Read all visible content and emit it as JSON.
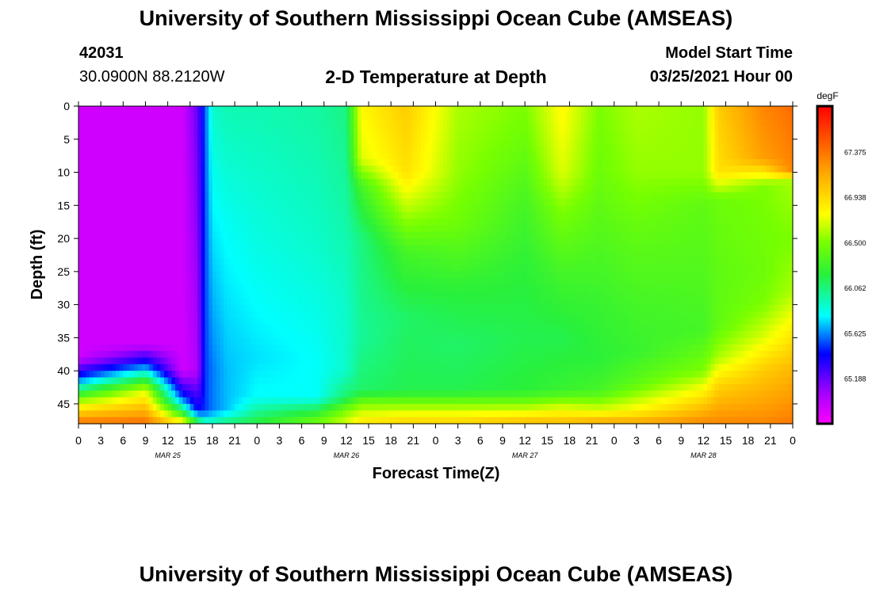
{
  "page": {
    "title": "University of Southern Mississippi Ocean Cube (AMSEAS)",
    "footer_title": "University of Southern Mississippi Ocean Cube (AMSEAS)",
    "station_id": "42031",
    "coordinates": "30.0900N  88.2120W",
    "plot_title": "2-D Temperature at Depth",
    "model_start_label": "Model Start Time",
    "model_start_value": "03/25/2021 Hour 00"
  },
  "chart_data": {
    "type": "heatmap",
    "title": "2-D Temperature at Depth",
    "xlabel": "Forecast Time(Z)",
    "ylabel": "Depth (ft)",
    "xlim_hours": [
      0,
      96
    ],
    "ylim_ft": [
      0,
      48
    ],
    "x_tick_labels": [
      "0",
      "3",
      "6",
      "9",
      "12",
      "15",
      "18",
      "21",
      "0",
      "3",
      "6",
      "9",
      "12",
      "15",
      "18",
      "21",
      "0",
      "3",
      "6",
      "9",
      "12",
      "15",
      "18",
      "21",
      "0",
      "3",
      "6",
      "9",
      "12",
      "15",
      "18",
      "21",
      "0"
    ],
    "day_labels": [
      "MAR 25",
      "MAR 26",
      "MAR 27",
      "MAR 28"
    ],
    "y_ticks": [
      0,
      5,
      10,
      15,
      20,
      25,
      30,
      35,
      40,
      45
    ],
    "colorbar": {
      "unit": "degF",
      "min": 64.75,
      "max": 67.8125,
      "labels": [
        "67.375",
        "66.938",
        "66.500",
        "66.062",
        "65.625",
        "65.188"
      ]
    },
    "temperature_keyframes": [
      {
        "hour": 0,
        "profile": [
          [
            0,
            64.9
          ],
          [
            38,
            64.9
          ],
          [
            41,
            65.5
          ],
          [
            43,
            66.1
          ],
          [
            45,
            66.7
          ],
          [
            48,
            67.4
          ]
        ]
      },
      {
        "hour": 9,
        "profile": [
          [
            0,
            64.9
          ],
          [
            36,
            64.9
          ],
          [
            39,
            65.5
          ],
          [
            41,
            66.1
          ],
          [
            43,
            66.7
          ],
          [
            48,
            67.4
          ]
        ]
      },
      {
        "hour": 14,
        "profile": [
          [
            0,
            64.9
          ],
          [
            40,
            64.9
          ],
          [
            44,
            65.5
          ],
          [
            46,
            66.1
          ],
          [
            48,
            66.9
          ]
        ]
      },
      {
        "hour": 16,
        "profile": [
          [
            0,
            65.2
          ],
          [
            40,
            65.0
          ],
          [
            46,
            65.4
          ],
          [
            48,
            66.3
          ]
        ]
      },
      {
        "hour": 17,
        "profile": [
          [
            0,
            65.55
          ],
          [
            40,
            65.5
          ],
          [
            46,
            65.5
          ],
          [
            48,
            66.0
          ]
        ]
      },
      {
        "hour": 18,
        "profile": [
          [
            0,
            65.9
          ],
          [
            40,
            65.6
          ],
          [
            46,
            65.6
          ],
          [
            48,
            66.0
          ]
        ]
      },
      {
        "hour": 20,
        "profile": [
          [
            0,
            65.95
          ],
          [
            20,
            65.8
          ],
          [
            40,
            65.7
          ],
          [
            46,
            65.7
          ],
          [
            48,
            66.1
          ]
        ]
      },
      {
        "hour": 24,
        "profile": [
          [
            0,
            65.95
          ],
          [
            20,
            65.85
          ],
          [
            38,
            65.75
          ],
          [
            44,
            65.8
          ],
          [
            48,
            66.2
          ]
        ]
      },
      {
        "hour": 32,
        "profile": [
          [
            0,
            65.98
          ],
          [
            20,
            65.9
          ],
          [
            38,
            65.8
          ],
          [
            44,
            65.8
          ],
          [
            48,
            66.5
          ]
        ]
      },
      {
        "hour": 36,
        "profile": [
          [
            0,
            66.05
          ],
          [
            15,
            65.98
          ],
          [
            30,
            65.9
          ],
          [
            40,
            65.9
          ],
          [
            44,
            66.1
          ],
          [
            46,
            66.5
          ],
          [
            48,
            66.7
          ]
        ]
      },
      {
        "hour": 38,
        "profile": [
          [
            0,
            66.8
          ],
          [
            8,
            66.7
          ],
          [
            12,
            66.3
          ],
          [
            20,
            66.05
          ],
          [
            35,
            66.0
          ],
          [
            43,
            66.1
          ],
          [
            45,
            66.5
          ],
          [
            48,
            66.9
          ]
        ]
      },
      {
        "hour": 44,
        "profile": [
          [
            0,
            67.0
          ],
          [
            10,
            66.9
          ],
          [
            16,
            66.6
          ],
          [
            22,
            66.3
          ],
          [
            32,
            66.1
          ],
          [
            43,
            66.15
          ],
          [
            45,
            66.5
          ],
          [
            48,
            67.0
          ]
        ]
      },
      {
        "hour": 51,
        "profile": [
          [
            0,
            66.6
          ],
          [
            10,
            66.55
          ],
          [
            18,
            66.45
          ],
          [
            28,
            66.2
          ],
          [
            36,
            66.1
          ],
          [
            43,
            66.15
          ],
          [
            45,
            66.5
          ],
          [
            48,
            67.0
          ]
        ]
      },
      {
        "hour": 60,
        "profile": [
          [
            0,
            66.5
          ],
          [
            5,
            66.45
          ],
          [
            15,
            66.3
          ],
          [
            25,
            66.2
          ],
          [
            35,
            66.15
          ],
          [
            43,
            66.2
          ],
          [
            45,
            66.5
          ],
          [
            48,
            67.1
          ]
        ]
      },
      {
        "hour": 65,
        "profile": [
          [
            0,
            66.8
          ],
          [
            10,
            66.7
          ],
          [
            16,
            66.5
          ],
          [
            25,
            66.3
          ],
          [
            35,
            66.15
          ],
          [
            43,
            66.25
          ],
          [
            45,
            66.6
          ],
          [
            48,
            67.1
          ]
        ]
      },
      {
        "hour": 70,
        "profile": [
          [
            0,
            66.5
          ],
          [
            10,
            66.45
          ],
          [
            20,
            66.35
          ],
          [
            30,
            66.25
          ],
          [
            38,
            66.2
          ],
          [
            43,
            66.3
          ],
          [
            46,
            66.7
          ],
          [
            48,
            67.2
          ]
        ]
      },
      {
        "hour": 75,
        "profile": [
          [
            0,
            66.6
          ],
          [
            10,
            66.55
          ],
          [
            20,
            66.4
          ],
          [
            30,
            66.3
          ],
          [
            37,
            66.25
          ],
          [
            42,
            66.4
          ],
          [
            46,
            66.8
          ],
          [
            48,
            67.2
          ]
        ]
      },
      {
        "hour": 84,
        "profile": [
          [
            0,
            66.55
          ],
          [
            10,
            66.55
          ],
          [
            15,
            66.4
          ],
          [
            25,
            66.35
          ],
          [
            34,
            66.3
          ],
          [
            40,
            66.5
          ],
          [
            44,
            66.9
          ],
          [
            48,
            67.3
          ]
        ]
      },
      {
        "hour": 86,
        "profile": [
          [
            0,
            67.0
          ],
          [
            10,
            66.9
          ],
          [
            14,
            66.45
          ],
          [
            25,
            66.4
          ],
          [
            33,
            66.4
          ],
          [
            38,
            66.6
          ],
          [
            42,
            66.95
          ],
          [
            48,
            67.3
          ]
        ]
      },
      {
        "hour": 92,
        "profile": [
          [
            0,
            67.3
          ],
          [
            8,
            67.2
          ],
          [
            12,
            66.5
          ],
          [
            25,
            66.45
          ],
          [
            30,
            66.5
          ],
          [
            35,
            66.7
          ],
          [
            40,
            67.0
          ],
          [
            48,
            67.3
          ]
        ]
      },
      {
        "hour": 96,
        "profile": [
          [
            0,
            67.4
          ],
          [
            10,
            67.3
          ],
          [
            11,
            66.6
          ],
          [
            20,
            66.5
          ],
          [
            28,
            66.6
          ],
          [
            34,
            66.85
          ],
          [
            40,
            67.1
          ],
          [
            48,
            67.35
          ]
        ]
      }
    ]
  }
}
